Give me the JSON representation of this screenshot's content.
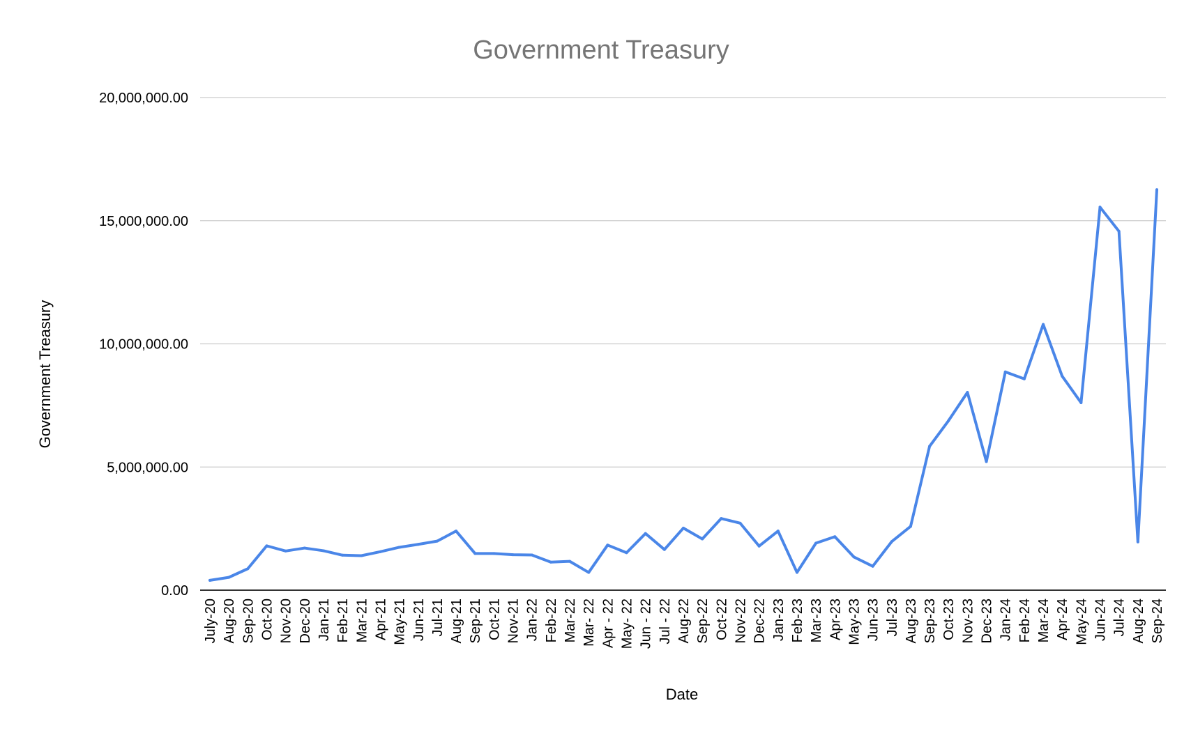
{
  "chart_data": {
    "type": "line",
    "title": "Government Treasury",
    "xlabel": "Date",
    "ylabel": "Government Treasury",
    "ylim": [
      0,
      20000000
    ],
    "yticks": [
      "0.00",
      "5,000,000.00",
      "10,000,000.00",
      "15,000,000.00",
      "20,000,000.00"
    ],
    "ytick_values": [
      0,
      5000000,
      10000000,
      15000000,
      20000000
    ],
    "grid": true,
    "legend": "none",
    "colors": {
      "series": "#4a86e8",
      "title": "#757575",
      "grid": "#cccccc"
    },
    "categories": [
      "July-20",
      "Aug-20",
      "Sep-20",
      "Oct-20",
      "Nov-20",
      "Dec-20",
      "Jan-21",
      "Feb-21",
      "Mar-21",
      "Apr-21",
      "May-21",
      "Jun-21",
      "Jul-21",
      "Aug-21",
      "Sep-21",
      "Oct-21",
      "Nov-21",
      "Jan-22",
      "Feb-22",
      "Mar-22",
      "Mar- 22",
      "Apr - 22",
      "May- 22",
      "Jun - 22",
      "Jul - 22",
      "Aug-22",
      "Sep-22",
      "Oct-22",
      "Nov-22",
      "Dec-22",
      "Jan-23",
      "Feb-23",
      "Mar-23",
      "Apr-23",
      "May-23",
      "Jun-23",
      "Jul-23",
      "Aug-23",
      "Sep-23",
      "Oct-23",
      "Nov-23",
      "Dec-23",
      "Jan-24",
      "Feb-24",
      "Mar-24",
      "Apr-24",
      "May-24",
      "Jun-24",
      "Jul-24",
      "Aug-24",
      "Sep-24"
    ],
    "series": [
      {
        "values": [
          400000,
          520000,
          870000,
          1800000,
          1590000,
          1710000,
          1600000,
          1420000,
          1400000,
          1560000,
          1740000,
          1860000,
          1990000,
          2400000,
          1490000,
          1490000,
          1440000,
          1430000,
          1140000,
          1170000,
          720000,
          1830000,
          1520000,
          2300000,
          1650000,
          2520000,
          2080000,
          2910000,
          2720000,
          1790000,
          2400000,
          720000,
          1910000,
          2170000,
          1350000,
          970000,
          1970000,
          2590000,
          5840000,
          6880000,
          8030000,
          5220000,
          8860000,
          8580000,
          10790000,
          8690000,
          7610000,
          15550000,
          14570000,
          1960000,
          16260000
        ]
      }
    ]
  }
}
